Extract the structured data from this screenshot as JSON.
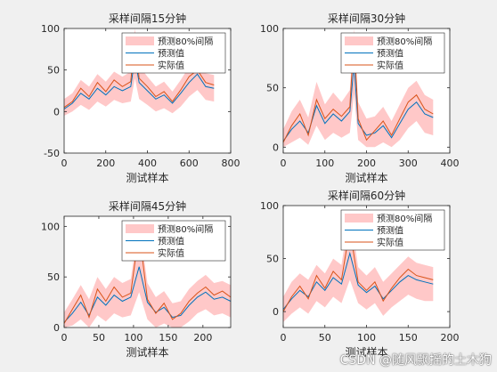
{
  "colors": {
    "band": "#ffc8c8",
    "predicted": "#0072bd",
    "actual": "#d95319",
    "axes_bg": "#ffffff",
    "figure_bg": "#f0f0f0"
  },
  "watermark": "CSDN @随风飘摇的土木狗",
  "chart_data": [
    {
      "type": "line",
      "title": "采样间隔15分钟",
      "xlabel": "测试样本",
      "ylabel": "",
      "xlim": [
        0,
        800
      ],
      "ylim": [
        -50,
        100
      ],
      "xticks": [
        0,
        200,
        400,
        600,
        800
      ],
      "yticks": [
        -50,
        0,
        50,
        100
      ],
      "legend_position": "top-right",
      "legend": [
        "预测80%间隔",
        "预测值",
        "实际值"
      ],
      "x": [
        0,
        40,
        80,
        120,
        160,
        200,
        240,
        280,
        320,
        340,
        360,
        400,
        440,
        480,
        520,
        560,
        600,
        640,
        680,
        720
      ],
      "series": [
        {
          "name": "预测值",
          "values": [
            3,
            10,
            22,
            15,
            28,
            20,
            30,
            25,
            30,
            65,
            35,
            25,
            15,
            20,
            10,
            22,
            35,
            45,
            30,
            28
          ]
        },
        {
          "name": "实际值",
          "values": [
            5,
            12,
            28,
            18,
            35,
            24,
            38,
            30,
            36,
            90,
            40,
            30,
            18,
            24,
            12,
            26,
            42,
            50,
            35,
            32
          ]
        }
      ],
      "band": {
        "name": "预测80%间隔",
        "lower": [
          -5,
          0,
          8,
          2,
          12,
          6,
          14,
          10,
          12,
          40,
          15,
          8,
          0,
          4,
          -2,
          6,
          18,
          26,
          14,
          12
        ],
        "upper": [
          15,
          22,
          38,
          30,
          45,
          36,
          48,
          42,
          48,
          100,
          55,
          42,
          30,
          36,
          24,
          38,
          54,
          62,
          46,
          44
        ]
      }
    },
    {
      "type": "line",
      "title": "采样间隔30分钟",
      "xlabel": "测试样本",
      "ylabel": "",
      "xlim": [
        0,
        400
      ],
      "ylim": [
        -5,
        100
      ],
      "xticks": [
        0,
        100,
        200,
        300,
        400
      ],
      "yticks": [
        0,
        50,
        100
      ],
      "legend_position": "top-right",
      "legend": [
        "预测80%间隔",
        "预测值",
        "实际值"
      ],
      "x": [
        0,
        20,
        40,
        60,
        80,
        100,
        120,
        140,
        160,
        170,
        180,
        200,
        220,
        240,
        260,
        280,
        300,
        320,
        340,
        360
      ],
      "series": [
        {
          "name": "预测值",
          "values": [
            5,
            15,
            22,
            12,
            35,
            20,
            28,
            22,
            30,
            70,
            20,
            10,
            12,
            18,
            8,
            20,
            32,
            38,
            28,
            25
          ]
        },
        {
          "name": "实际值",
          "values": [
            4,
            18,
            28,
            10,
            40,
            24,
            32,
            26,
            34,
            95,
            24,
            6,
            14,
            22,
            10,
            24,
            38,
            44,
            32,
            28
          ]
        }
      ],
      "band": {
        "name": "预测80%间隔",
        "lower": [
          0,
          4,
          8,
          2,
          18,
          6,
          12,
          8,
          12,
          45,
          6,
          0,
          0,
          4,
          0,
          6,
          16,
          22,
          12,
          10
        ],
        "upper": [
          15,
          30,
          40,
          25,
          55,
          36,
          46,
          38,
          48,
          100,
          38,
          24,
          26,
          34,
          22,
          36,
          50,
          56,
          44,
          40
        ]
      }
    },
    {
      "type": "line",
      "title": "采样间隔45分钟",
      "xlabel": "测试样本",
      "ylabel": "",
      "xlim": [
        0,
        240
      ],
      "ylim": [
        0,
        110
      ],
      "xticks": [
        0,
        50,
        100,
        150,
        200
      ],
      "yticks": [
        0,
        50,
        100
      ],
      "legend_position": "top-right",
      "legend": [
        "预测80%间隔",
        "预测值",
        "实际值"
      ],
      "x": [
        0,
        12,
        24,
        36,
        48,
        60,
        72,
        84,
        96,
        108,
        120,
        132,
        144,
        156,
        168,
        180,
        192,
        204,
        216,
        228,
        240
      ],
      "series": [
        {
          "name": "预测值",
          "values": [
            5,
            14,
            25,
            12,
            30,
            22,
            32,
            26,
            30,
            60,
            25,
            15,
            20,
            10,
            12,
            22,
            30,
            35,
            28,
            30,
            26
          ]
        },
        {
          "name": "实际值",
          "values": [
            4,
            18,
            32,
            10,
            38,
            26,
            40,
            30,
            34,
            95,
            28,
            14,
            24,
            8,
            14,
            26,
            34,
            40,
            32,
            36,
            30
          ]
        }
      ],
      "band": {
        "name": "预测80%间隔",
        "lower": [
          0,
          2,
          8,
          0,
          12,
          6,
          14,
          10,
          12,
          35,
          8,
          0,
          4,
          0,
          0,
          6,
          14,
          18,
          12,
          14,
          10
        ],
        "upper": [
          15,
          28,
          42,
          28,
          50,
          38,
          50,
          44,
          48,
          105,
          44,
          30,
          36,
          24,
          26,
          38,
          46,
          52,
          44,
          46,
          42
        ]
      }
    },
    {
      "type": "line",
      "title": "采样间隔60分钟",
      "xlabel": "测试样本",
      "ylabel": "",
      "xlim": [
        0,
        200
      ],
      "ylim": [
        -15,
        100
      ],
      "xticks": [
        0,
        50,
        100,
        150,
        200
      ],
      "yticks": [
        0,
        50,
        100
      ],
      "legend_position": "top-right",
      "legend": [
        "预测80%间隔",
        "预测值",
        "实际值"
      ],
      "x": [
        0,
        10,
        20,
        30,
        40,
        50,
        60,
        70,
        80,
        90,
        100,
        110,
        120,
        130,
        140,
        150,
        160,
        170,
        180
      ],
      "series": [
        {
          "name": "预测值",
          "values": [
            2,
            12,
            20,
            14,
            28,
            20,
            32,
            26,
            55,
            25,
            18,
            24,
            12,
            20,
            28,
            34,
            30,
            28,
            26
          ]
        },
        {
          "name": "实际值",
          "values": [
            0,
            14,
            24,
            12,
            34,
            22,
            38,
            30,
            78,
            28,
            20,
            28,
            10,
            22,
            32,
            40,
            34,
            32,
            30
          ]
        }
      ],
      "band": {
        "name": "预测80%间隔",
        "lower": [
          -10,
          -2,
          4,
          -2,
          10,
          4,
          14,
          8,
          30,
          8,
          2,
          8,
          -4,
          4,
          10,
          16,
          12,
          10,
          10
        ],
        "upper": [
          14,
          28,
          36,
          30,
          44,
          36,
          50,
          44,
          95,
          42,
          34,
          42,
          28,
          36,
          44,
          52,
          46,
          44,
          42
        ]
      }
    }
  ]
}
